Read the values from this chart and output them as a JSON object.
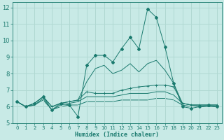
{
  "bg_color": "#c8eae6",
  "grid_color": "#b0d8d2",
  "line_color": "#1a7a6e",
  "xlabel": "Humidex (Indice chaleur)",
  "xlim": [
    -0.5,
    23.5
  ],
  "ylim": [
    5,
    12.3
  ],
  "yticks": [
    5,
    6,
    7,
    8,
    9,
    10,
    11,
    12
  ],
  "xticks": [
    0,
    1,
    2,
    3,
    4,
    5,
    6,
    7,
    8,
    9,
    10,
    11,
    12,
    13,
    14,
    15,
    16,
    17,
    18,
    19,
    20,
    21,
    22,
    23
  ],
  "s1_x": [
    0,
    1,
    2,
    3,
    4,
    5,
    6,
    7,
    8,
    9,
    10,
    11,
    12,
    13,
    14,
    15,
    16,
    17,
    18,
    19,
    20,
    21,
    22,
    23
  ],
  "s1_y": [
    6.3,
    6.0,
    6.2,
    6.6,
    5.8,
    6.2,
    6.1,
    5.4,
    8.5,
    9.1,
    9.1,
    8.7,
    9.5,
    10.2,
    9.5,
    11.9,
    11.4,
    9.6,
    7.4,
    6.0,
    5.9,
    6.0,
    6.1,
    6.0
  ],
  "s2_x": [
    0,
    1,
    2,
    3,
    4,
    5,
    6,
    7,
    8,
    9,
    10,
    11,
    12,
    13,
    14,
    15,
    16,
    17,
    18,
    19,
    20,
    21,
    22,
    23
  ],
  "s2_y": [
    6.3,
    6.0,
    6.2,
    6.6,
    6.0,
    6.2,
    6.3,
    6.4,
    7.5,
    8.3,
    8.5,
    8.0,
    8.2,
    8.6,
    8.1,
    8.6,
    8.8,
    8.2,
    7.4,
    6.2,
    6.1,
    6.1,
    6.1,
    6.1
  ],
  "s3_x": [
    0,
    1,
    2,
    3,
    4,
    5,
    6,
    7,
    8,
    9,
    10,
    11,
    12,
    13,
    14,
    15,
    16,
    17,
    18,
    19,
    20,
    21,
    22,
    23
  ],
  "s3_y": [
    6.3,
    6.0,
    6.2,
    6.6,
    6.0,
    6.2,
    6.3,
    6.4,
    6.9,
    6.8,
    6.8,
    6.8,
    7.0,
    7.1,
    7.2,
    7.25,
    7.3,
    7.3,
    7.2,
    6.2,
    6.1,
    6.1,
    6.1,
    6.1
  ],
  "s4_x": [
    0,
    1,
    2,
    3,
    4,
    5,
    6,
    7,
    8,
    9,
    10,
    11,
    12,
    13,
    14,
    15,
    16,
    17,
    18,
    19,
    20,
    21,
    22,
    23
  ],
  "s4_y": [
    6.3,
    6.0,
    6.1,
    6.5,
    5.8,
    6.1,
    6.2,
    6.3,
    6.6,
    6.6,
    6.6,
    6.6,
    6.7,
    6.8,
    6.8,
    6.8,
    6.9,
    6.9,
    6.7,
    6.2,
    6.1,
    6.0,
    6.0,
    6.0
  ],
  "s5_x": [
    0,
    1,
    2,
    3,
    4,
    5,
    6,
    7,
    8,
    9,
    10,
    11,
    12,
    13,
    14,
    15,
    16,
    17,
    18,
    19,
    20,
    21,
    22,
    23
  ],
  "s5_y": [
    6.3,
    6.0,
    6.1,
    6.4,
    5.8,
    6.0,
    6.1,
    6.1,
    6.3,
    6.3,
    6.3,
    6.3,
    6.4,
    6.4,
    6.4,
    6.4,
    6.5,
    6.5,
    6.4,
    6.1,
    6.0,
    6.0,
    6.0,
    6.0
  ]
}
